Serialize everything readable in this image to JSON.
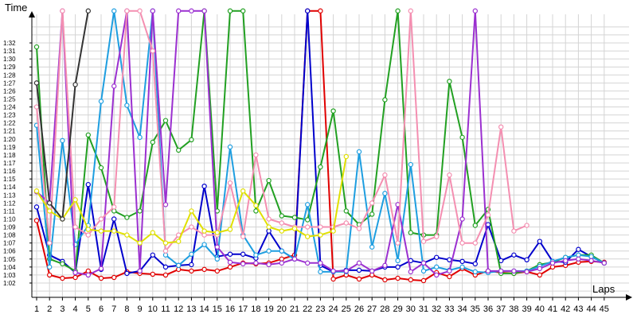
{
  "chart_data": {
    "type": "line",
    "ylabel": "Time",
    "xlabel": "Laps",
    "grid": true,
    "x_ticks": [
      1,
      2,
      3,
      4,
      5,
      6,
      7,
      8,
      9,
      10,
      11,
      12,
      13,
      14,
      15,
      16,
      17,
      18,
      19,
      20,
      21,
      22,
      23,
      24,
      25,
      26,
      27,
      28,
      29,
      30,
      31,
      32,
      33,
      34,
      35,
      36,
      37,
      38,
      39,
      40,
      41,
      42,
      43,
      44,
      45
    ],
    "y_tick_labels": [
      "1:02",
      "1:03",
      "1:04",
      "1:05",
      "1:06",
      "1:07",
      "1:08",
      "1:09",
      "1:10",
      "1:11",
      "1:12",
      "1:13",
      "1:14",
      "1:15",
      "1:16",
      "1:17",
      "1:18",
      "1:19",
      "1:20",
      "1:21",
      "1:22",
      "1:23",
      "1:24",
      "1:25",
      "1:26",
      "1:27",
      "1:28",
      "1:29",
      "1:30",
      "1:31",
      "1:32"
    ],
    "ylim_seconds": [
      61,
      94
    ],
    "series": [
      {
        "color": "#e00000",
        "values": [
          69.8,
          63.0,
          62.6,
          62.7,
          63.5,
          62.6,
          62.7,
          63.4,
          63.2,
          63.1,
          63.0,
          63.7,
          63.5,
          63.7,
          63.5,
          64.0,
          64.5,
          64.4,
          64.5,
          65.0,
          65.5,
          96.0,
          96.0,
          62.5,
          63.0,
          62.5,
          63.0,
          62.4,
          62.6,
          62.4,
          62.3,
          63.3,
          62.8,
          63.8,
          63.0,
          63.5,
          63.3,
          63.2,
          63.4,
          63.0,
          64.0,
          64.2,
          64.6,
          64.7,
          64.6
        ]
      },
      {
        "color": "#0000cc",
        "values": [
          71.5,
          65.5,
          64.7,
          63.3,
          74.3,
          63.7,
          70.0,
          63.2,
          63.5,
          65.5,
          64.0,
          64.2,
          64.3,
          74.1,
          65.3,
          65.6,
          65.6,
          65.1,
          68.5,
          66.0,
          65.0,
          96.0,
          64.2,
          63.4,
          63.6,
          63.6,
          63.5,
          64.0,
          64.0,
          64.8,
          64.5,
          65.2,
          64.9,
          64.7,
          64.4,
          69.3,
          64.8,
          65.5,
          64.9,
          67.2,
          64.7,
          64.6,
          66.2,
          65.3,
          64.5
        ]
      },
      {
        "color": "#22a022",
        "values": [
          91.5,
          65.0,
          64.4,
          63.5,
          80.5,
          76.4,
          71.0,
          70.2,
          71.0,
          79.6,
          82.3,
          78.6,
          79.9,
          96.0,
          71.0,
          96.0,
          96.0,
          71.0,
          74.8,
          70.4,
          70.2,
          69.9,
          76.5,
          83.5,
          71.0,
          69.3,
          70.6,
          84.9,
          96.0,
          68.3,
          68.0,
          68.0,
          87.2,
          80.2,
          69.2,
          71.2,
          63.2,
          63.2,
          63.5,
          64.3,
          64.6,
          65.2,
          65.5,
          65.5,
          64.5
        ]
      },
      {
        "color": "#1e9ee0",
        "values": [
          81.7,
          64.0,
          79.8,
          66.8,
          69.2,
          84.7,
          96.0,
          84.2,
          80.2,
          96.0,
          65.5,
          64.2,
          65.6,
          66.8,
          65.0,
          79.0,
          68.0,
          65.5,
          66.0,
          66.0,
          65.0,
          71.8,
          63.4,
          63.4,
          63.4,
          78.4,
          66.5,
          73.2,
          64.8,
          76.8,
          63.5,
          64.0,
          63.6,
          64.0,
          63.4,
          63.3,
          63.5,
          63.5,
          63.5,
          64.1,
          64.7,
          65.2,
          65.5,
          65.3,
          64.5
        ]
      },
      {
        "color": "#9b30d0",
        "values": [
          73.4,
          72.0,
          96.0,
          63.3,
          63.0,
          63.8,
          86.6,
          96.0,
          63.5,
          96.0,
          71.8,
          96.0,
          96.0,
          96.0,
          66.5,
          64.6,
          64.4,
          64.5,
          64.3,
          64.5,
          65.0,
          64.5,
          64.5,
          63.5,
          63.5,
          64.5,
          63.5,
          64.2,
          71.8,
          63.4,
          64.5,
          63.0,
          63.5,
          70.0,
          96.0,
          63.5,
          63.5,
          63.5,
          63.4,
          63.8,
          64.5,
          64.8,
          65.0,
          64.8,
          64.5
        ]
      },
      {
        "color": "#f48fb1",
        "values": [
          84.0,
          67.0,
          96.0,
          69.0,
          68.0,
          70.0,
          71.5,
          96.0,
          96.0,
          91.0,
          66.0,
          68.0,
          69.0,
          68.0,
          68.0,
          74.5,
          67.8,
          78.0,
          70.0,
          69.5,
          69.0,
          69.0,
          69.0,
          69.0,
          69.5,
          68.8,
          72.0,
          75.5,
          67.0,
          96.0,
          67.2,
          67.8,
          75.5,
          67.0,
          67.0,
          70.5,
          81.5,
          68.5,
          69.2
        ]
      },
      {
        "color": "#e0e000",
        "values": [
          73.5,
          71.0,
          70.0,
          72.4,
          68.7,
          68.5,
          68.5,
          68.0,
          67.0,
          68.3,
          67.0,
          67.2,
          71.0,
          68.5,
          68.3,
          68.7,
          73.5,
          71.7,
          69.0,
          68.5,
          68.8,
          67.8,
          68.0,
          68.5,
          77.8
        ]
      },
      {
        "color": "#333333",
        "values": [
          87.0,
          72.0,
          70.0,
          86.8,
          96.0
        ]
      }
    ]
  }
}
